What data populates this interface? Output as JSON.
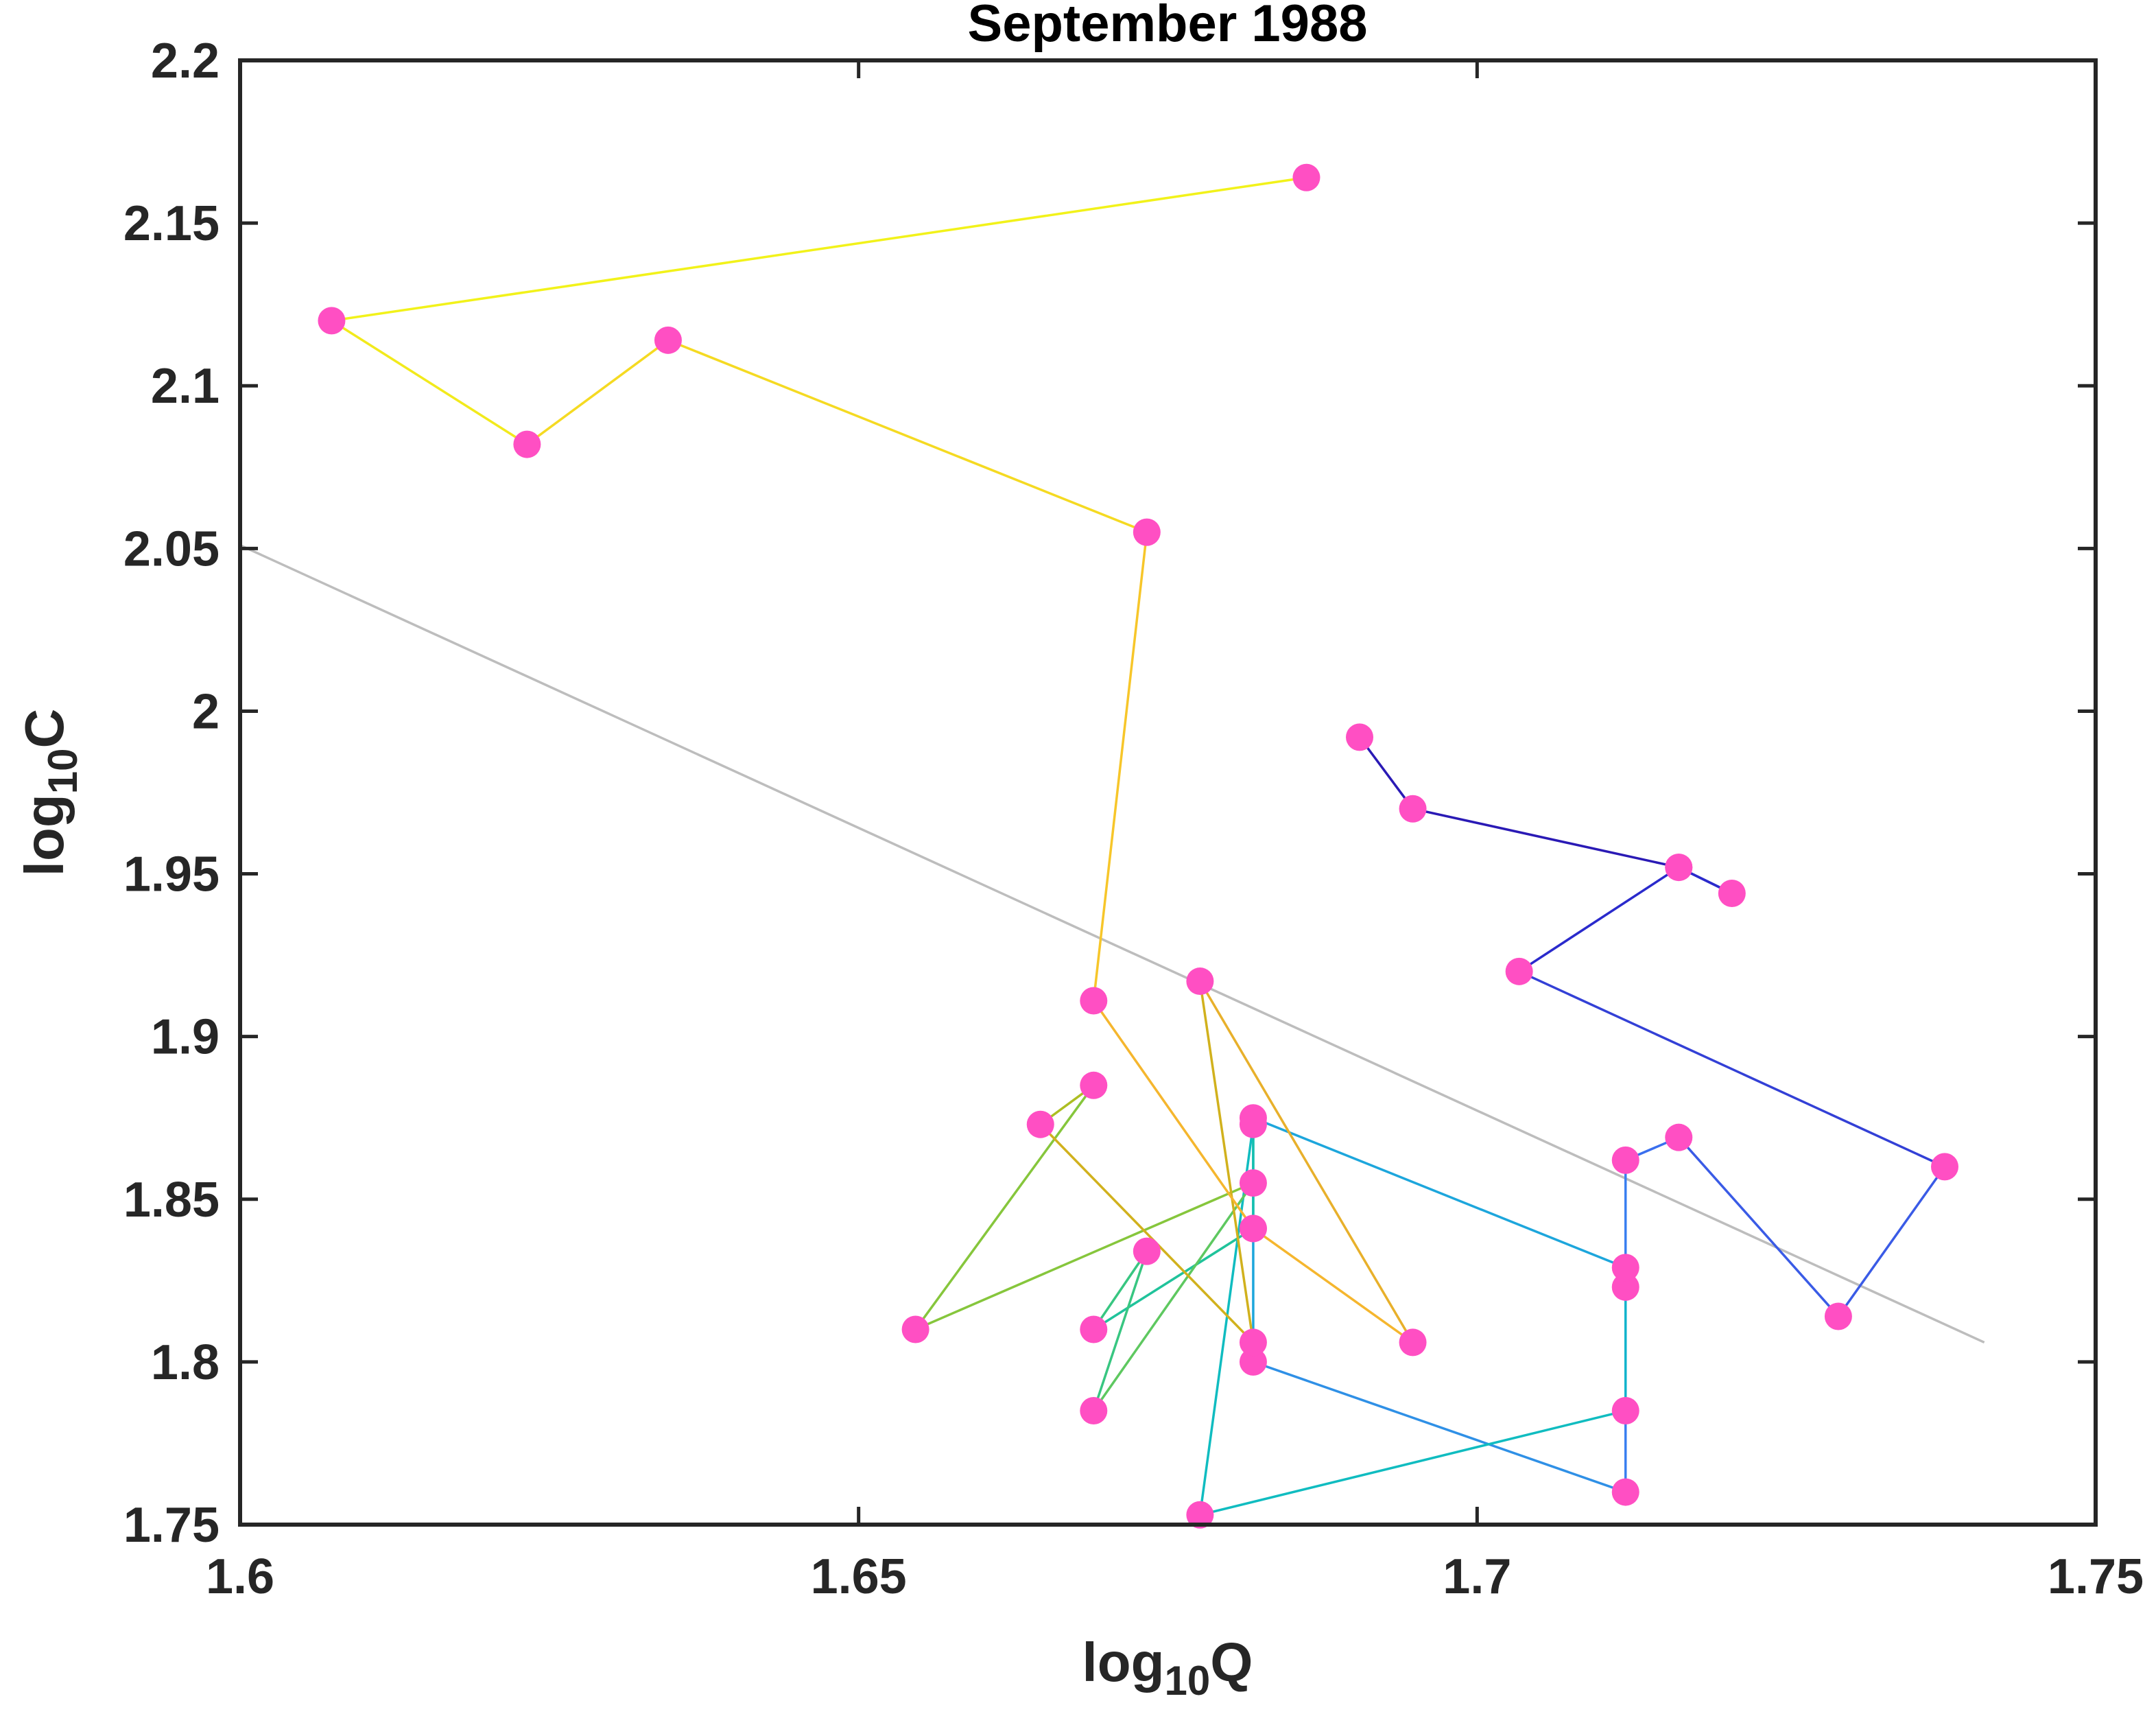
{
  "chart_data": {
    "type": "line",
    "title": "September 1988",
    "xlabel": {
      "prefix": "log",
      "sub": "10",
      "suffix": "Q"
    },
    "ylabel": {
      "prefix": "log",
      "sub": "10",
      "suffix": "C"
    },
    "xlim": [
      1.6,
      1.75
    ],
    "ylim": [
      1.75,
      2.2
    ],
    "xticks": [
      1.6,
      1.65,
      1.7,
      1.75
    ],
    "xtick_labels": [
      "1.6",
      "1.65",
      "1.7",
      "1.75"
    ],
    "yticks": [
      1.75,
      1.8,
      1.85,
      1.9,
      1.95,
      2.0,
      2.05,
      2.1,
      2.15,
      2.2
    ],
    "ytick_labels": [
      "1.75",
      "1.8",
      "1.85",
      "1.9",
      "1.95",
      "2",
      "2.05",
      "2.1",
      "2.15",
      "2.2"
    ],
    "grid": false,
    "marker_color": "#FF4FC3",
    "trend_line": {
      "color": "#BDBDBD",
      "x": [
        1.6,
        1.741
      ],
      "y": [
        2.051,
        1.806
      ]
    },
    "segment_colors": [
      "#2A1AB5",
      "#2A1AB5",
      "#2A2ACC",
      "#3340D6",
      "#3A5BE6",
      "#3A6FEE",
      "#3A7FF0",
      "#2F90E6",
      "#1DA6DC",
      "#12B4CC",
      "#10BCC0",
      "#15C0AE",
      "#20C39B",
      "#38C681",
      "#5EC860",
      "#86C63C",
      "#ADBE22",
      "#D1B11D",
      "#E8B02B",
      "#F5B62E",
      "#F7C62A",
      "#F5DA22",
      "#F2EA1C",
      "#F2F21A"
    ],
    "x": [
      1.6905,
      1.6948,
      1.7163,
      1.7206,
      1.7163,
      1.7034,
      1.7378,
      1.7292,
      1.7163,
      1.712,
      1.712,
      1.712,
      1.6819,
      1.6819,
      1.712,
      1.712,
      1.6776,
      1.6819,
      1.6819,
      1.669,
      1.6733,
      1.669,
      1.6819,
      1.6546,
      1.669,
      1.6647,
      1.6819,
      1.6776,
      1.6948,
      1.6819,
      1.669,
      1.6733,
      1.6346,
      1.6232,
      1.6074,
      1.6862
    ],
    "y": [
      1.992,
      1.97,
      1.952,
      1.944,
      1.952,
      1.92,
      1.86,
      1.814,
      1.869,
      1.862,
      1.823,
      1.76,
      1.8,
      1.875,
      1.829,
      1.785,
      1.753,
      1.873,
      1.841,
      1.81,
      1.834,
      1.785,
      1.855,
      1.81,
      1.885,
      1.873,
      1.806,
      1.917,
      1.806,
      1.841,
      1.911,
      2.055,
      2.114,
      2.082,
      2.12,
      2.164
    ]
  }
}
